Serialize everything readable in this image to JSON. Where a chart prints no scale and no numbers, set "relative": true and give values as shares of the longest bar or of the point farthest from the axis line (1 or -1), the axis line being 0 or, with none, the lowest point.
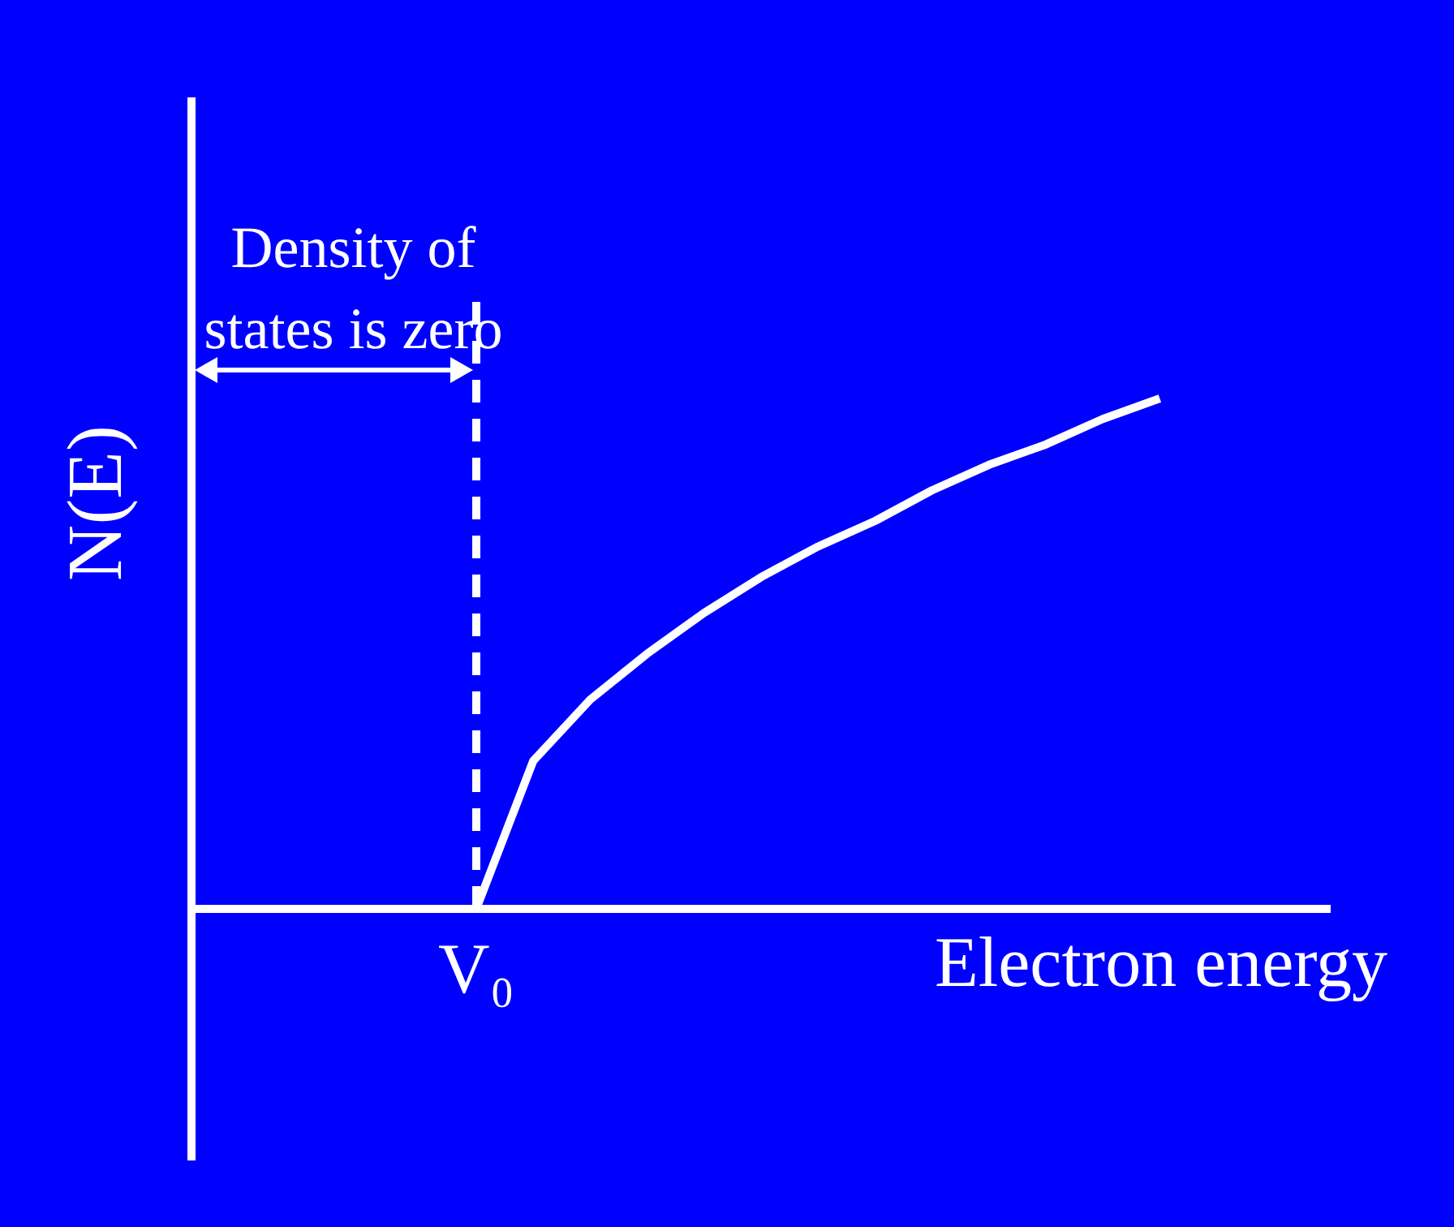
{
  "chart_data": {
    "type": "line",
    "relative": true,
    "xlabel": "Electron energy",
    "ylabel": "N(E)",
    "categories": [
      null,
      null,
      null,
      null,
      null,
      null,
      null,
      null,
      null,
      null,
      null,
      null,
      null,
      null,
      null,
      null,
      null,
      null,
      null,
      null,
      null
    ],
    "series": [
      {
        "color": "#ffffff",
        "values": [
          0,
          0,
          0,
          0,
          0,
          0,
          0.29,
          0.41,
          0.5,
          0.58,
          0.65,
          0.71,
          0.76,
          0.82,
          0.87,
          0.91,
          0.96,
          1,
          null,
          null,
          null
        ]
      }
    ],
    "ref_lines": [
      {
        "axis": "x",
        "label": "V₀",
        "color": "#ffffff",
        "line_style": "dashed"
      }
    ],
    "annotations": [
      "Density of states is zero"
    ],
    "legend": false,
    "marker": "none",
    "line_style": "solid"
  }
}
